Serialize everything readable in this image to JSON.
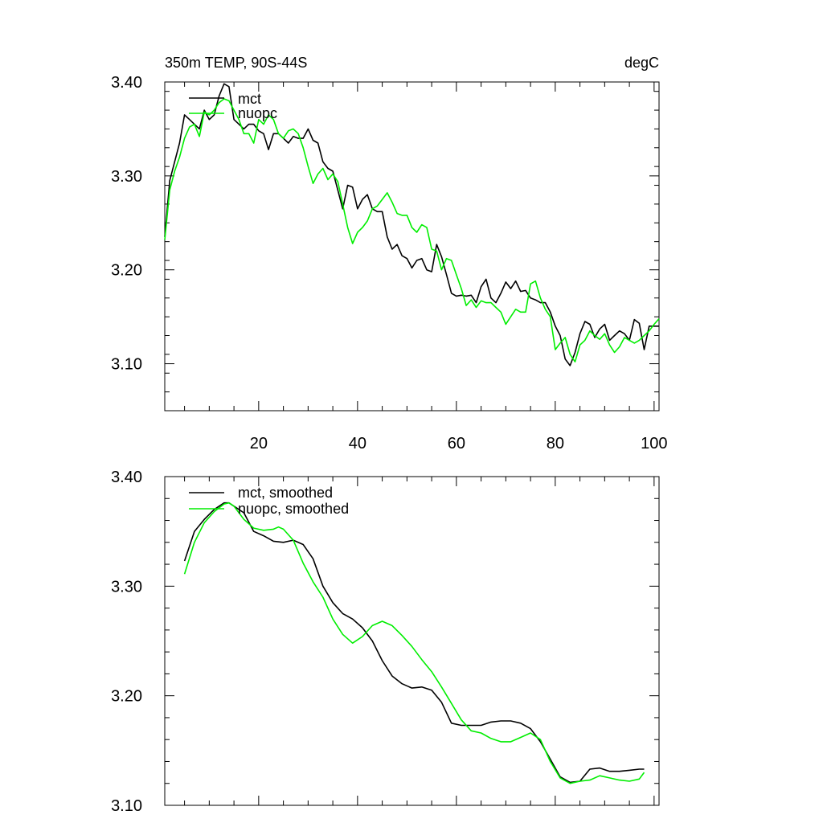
{
  "chart_data": [
    {
      "type": "line",
      "title_left": "350m TEMP, 90S-44S",
      "title_right": "degC",
      "xlim": [
        1,
        101
      ],
      "ylim": [
        3.05,
        3.4
      ],
      "xticks": [
        20,
        40,
        60,
        80,
        100
      ],
      "yticks": [
        3.1,
        3.2,
        3.3,
        3.4
      ],
      "ytick_labels": [
        "3.10",
        "3.20",
        "3.30",
        "3.40"
      ],
      "legend": [
        "mct",
        "nuopc"
      ],
      "series": [
        {
          "name": "mct",
          "color": "#000000",
          "x": [
            1,
            2,
            3,
            4,
            5,
            6,
            7,
            8,
            9,
            10,
            11,
            12,
            13,
            14,
            15,
            16,
            17,
            18,
            19,
            20,
            21,
            22,
            23,
            24,
            25,
            26,
            27,
            28,
            29,
            30,
            31,
            32,
            33,
            34,
            35,
            36,
            37,
            38,
            39,
            40,
            41,
            42,
            43,
            44,
            45,
            46,
            47,
            48,
            49,
            50,
            51,
            52,
            53,
            54,
            55,
            56,
            57,
            58,
            59,
            60,
            61,
            62,
            63,
            64,
            65,
            66,
            67,
            68,
            69,
            70,
            71,
            72,
            73,
            74,
            75,
            76,
            77,
            78,
            79,
            80,
            81,
            82,
            83,
            84,
            85,
            86,
            87,
            88,
            89,
            90,
            91,
            92,
            93,
            94,
            95,
            96,
            97,
            98,
            99,
            100,
            101
          ],
          "values": [
            3.235,
            3.295,
            3.315,
            3.335,
            3.365,
            3.36,
            3.355,
            3.35,
            3.37,
            3.36,
            3.365,
            3.385,
            3.398,
            3.395,
            3.36,
            3.355,
            3.35,
            3.355,
            3.355,
            3.348,
            3.345,
            3.328,
            3.345,
            3.345,
            3.34,
            3.335,
            3.342,
            3.34,
            3.34,
            3.35,
            3.338,
            3.335,
            3.315,
            3.308,
            3.305,
            3.285,
            3.265,
            3.29,
            3.288,
            3.265,
            3.275,
            3.28,
            3.265,
            3.262,
            3.262,
            3.235,
            3.222,
            3.227,
            3.215,
            3.212,
            3.202,
            3.21,
            3.212,
            3.2,
            3.198,
            3.227,
            3.214,
            3.195,
            3.175,
            3.172,
            3.173,
            3.172,
            3.173,
            3.165,
            3.182,
            3.19,
            3.17,
            3.165,
            3.175,
            3.187,
            3.18,
            3.188,
            3.177,
            3.178,
            3.17,
            3.168,
            3.165,
            3.165,
            3.155,
            3.14,
            3.13,
            3.105,
            3.098,
            3.112,
            3.132,
            3.145,
            3.142,
            3.128,
            3.137,
            3.142,
            3.125,
            3.13,
            3.135,
            3.132,
            3.125,
            3.147,
            3.143,
            3.115,
            3.14,
            3.14,
            3.14
          ]
        },
        {
          "name": "nuopc",
          "color": "#00ee00",
          "x": [
            1,
            2,
            3,
            4,
            5,
            6,
            7,
            8,
            9,
            10,
            11,
            12,
            13,
            14,
            15,
            16,
            17,
            18,
            19,
            20,
            21,
            22,
            23,
            24,
            25,
            26,
            27,
            28,
            29,
            30,
            31,
            32,
            33,
            34,
            35,
            36,
            37,
            38,
            39,
            40,
            41,
            42,
            43,
            44,
            45,
            46,
            47,
            48,
            49,
            50,
            51,
            52,
            53,
            54,
            55,
            56,
            57,
            58,
            59,
            60,
            61,
            62,
            63,
            64,
            65,
            66,
            67,
            68,
            69,
            70,
            71,
            72,
            73,
            74,
            75,
            76,
            77,
            78,
            79,
            80,
            81,
            82,
            83,
            84,
            85,
            86,
            87,
            88,
            89,
            90,
            91,
            92,
            93,
            94,
            95,
            96,
            97,
            98,
            99,
            100,
            101
          ],
          "values": [
            3.232,
            3.285,
            3.305,
            3.32,
            3.34,
            3.352,
            3.355,
            3.342,
            3.368,
            3.365,
            3.37,
            3.378,
            3.382,
            3.38,
            3.37,
            3.36,
            3.345,
            3.345,
            3.335,
            3.36,
            3.355,
            3.365,
            3.36,
            3.345,
            3.34,
            3.348,
            3.35,
            3.345,
            3.33,
            3.31,
            3.292,
            3.302,
            3.308,
            3.296,
            3.302,
            3.294,
            3.27,
            3.245,
            3.228,
            3.24,
            3.245,
            3.252,
            3.265,
            3.268,
            3.275,
            3.282,
            3.272,
            3.26,
            3.258,
            3.258,
            3.245,
            3.24,
            3.248,
            3.245,
            3.222,
            3.22,
            3.2,
            3.212,
            3.21,
            3.195,
            3.18,
            3.162,
            3.168,
            3.16,
            3.167,
            3.165,
            3.165,
            3.16,
            3.155,
            3.142,
            3.15,
            3.158,
            3.155,
            3.155,
            3.185,
            3.188,
            3.17,
            3.158,
            3.15,
            3.115,
            3.122,
            3.128,
            3.11,
            3.102,
            3.12,
            3.125,
            3.135,
            3.13,
            3.126,
            3.132,
            3.12,
            3.112,
            3.118,
            3.128,
            3.125,
            3.122,
            3.125,
            3.13,
            3.135,
            3.142,
            3.148
          ]
        }
      ]
    },
    {
      "type": "line",
      "xlim": [
        1,
        101
      ],
      "ylim": [
        3.1,
        3.4
      ],
      "xticks": [
        20,
        40,
        60,
        80,
        100
      ],
      "yticks": [
        3.1,
        3.2,
        3.3,
        3.4
      ],
      "ytick_labels": [
        "3.10",
        "3.20",
        "3.30",
        "3.40"
      ],
      "legend": [
        "mct, smoothed",
        "nuopc, smoothed"
      ],
      "series": [
        {
          "name": "mct, smoothed",
          "color": "#000000",
          "x": [
            5,
            7,
            9,
            11,
            13,
            14,
            15,
            17,
            19,
            21,
            23,
            25,
            27,
            29,
            31,
            33,
            35,
            37,
            39,
            41,
            43,
            45,
            47,
            49,
            51,
            53,
            55,
            57,
            59,
            61,
            63,
            65,
            67,
            69,
            71,
            73,
            75,
            77,
            79,
            81,
            83,
            85,
            87,
            89,
            91,
            93,
            95,
            97,
            98
          ],
          "values": [
            3.323,
            3.35,
            3.361,
            3.37,
            3.376,
            3.376,
            3.373,
            3.367,
            3.35,
            3.346,
            3.341,
            3.34,
            3.342,
            3.338,
            3.325,
            3.3,
            3.285,
            3.275,
            3.27,
            3.262,
            3.25,
            3.232,
            3.218,
            3.211,
            3.207,
            3.208,
            3.205,
            3.194,
            3.175,
            3.173,
            3.173,
            3.173,
            3.176,
            3.177,
            3.177,
            3.175,
            3.17,
            3.158,
            3.142,
            3.126,
            3.121,
            3.122,
            3.133,
            3.134,
            3.131,
            3.131,
            3.132,
            3.133,
            3.133
          ]
        },
        {
          "name": "nuopc, smoothed",
          "color": "#00ee00",
          "x": [
            5,
            7,
            9,
            11,
            13,
            14,
            15,
            17,
            19,
            21,
            23,
            24,
            25,
            27,
            29,
            31,
            33,
            35,
            37,
            39,
            41,
            43,
            45,
            47,
            49,
            51,
            53,
            55,
            57,
            59,
            61,
            63,
            65,
            67,
            69,
            71,
            73,
            75,
            77,
            79,
            81,
            83,
            85,
            87,
            89,
            91,
            93,
            95,
            97,
            98
          ],
          "values": [
            3.311,
            3.34,
            3.358,
            3.368,
            3.375,
            3.376,
            3.373,
            3.361,
            3.353,
            3.351,
            3.352,
            3.354,
            3.352,
            3.342,
            3.321,
            3.304,
            3.29,
            3.27,
            3.256,
            3.248,
            3.254,
            3.264,
            3.268,
            3.264,
            3.255,
            3.245,
            3.233,
            3.222,
            3.208,
            3.193,
            3.178,
            3.168,
            3.166,
            3.161,
            3.158,
            3.158,
            3.162,
            3.166,
            3.16,
            3.14,
            3.125,
            3.12,
            3.122,
            3.123,
            3.127,
            3.125,
            3.123,
            3.122,
            3.124,
            3.13
          ]
        }
      ]
    }
  ]
}
